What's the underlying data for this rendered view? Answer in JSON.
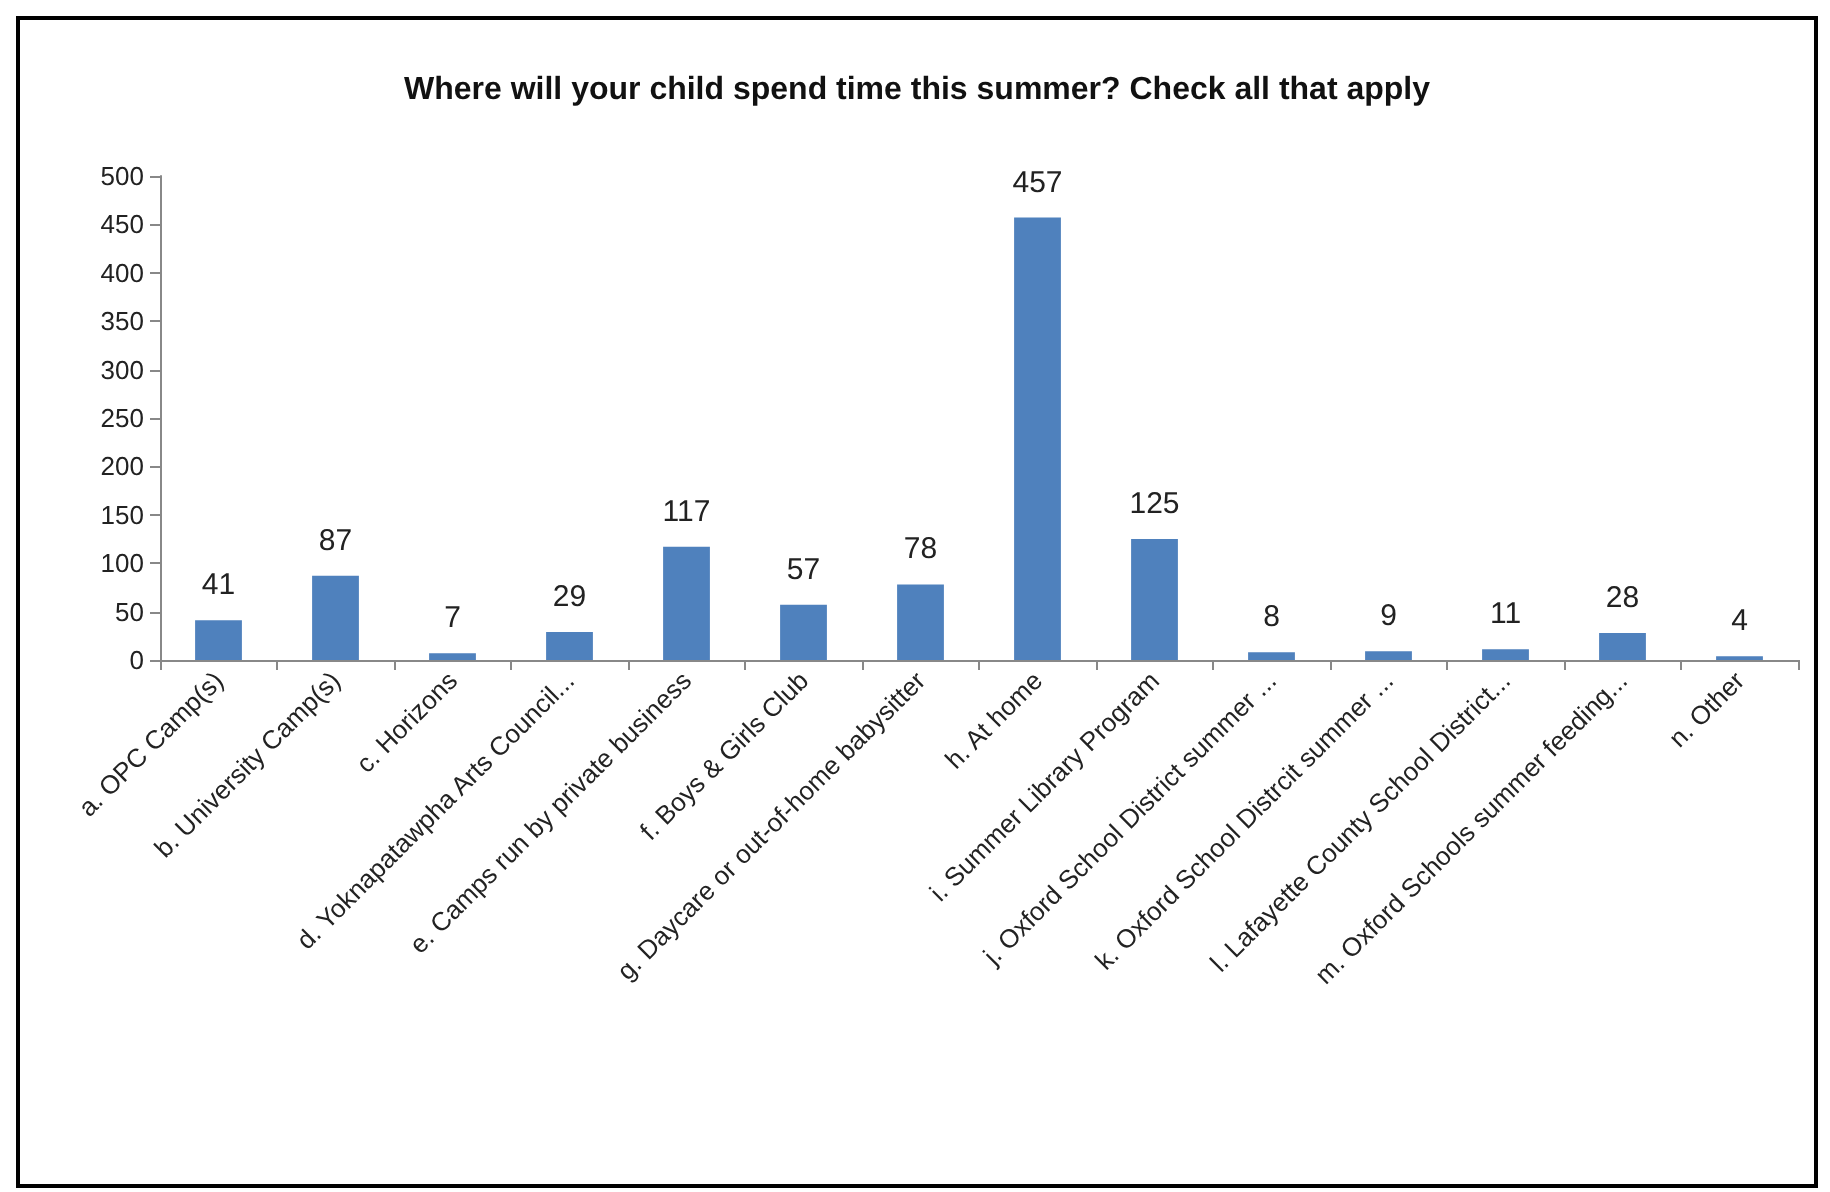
{
  "chart_data": {
    "type": "bar",
    "title": "Where will your child spend time this summer? Check all that apply",
    "categories": [
      "a. OPC Camp(s)",
      "b. University Camp(s)",
      "c. Horizons",
      "d. Yoknapatawpha Arts Council...",
      "e. Camps run by private business",
      "f. Boys & Girls Club",
      "g. Daycare or out-of-home babysitter",
      "h. At home",
      "i. Summer Library Program",
      "j. Oxford School District summer ...",
      "k. Oxford School Distrcit summer ...",
      "l. Lafayette County School District...",
      "m. Oxford Schools summer feeding...",
      "n. Other"
    ],
    "values": [
      41,
      87,
      7,
      29,
      117,
      57,
      78,
      457,
      125,
      8,
      9,
      11,
      28,
      4
    ],
    "color": "#4f81bd",
    "data_labels": true,
    "grid": false,
    "ylim": [
      0,
      500
    ],
    "yticks": [
      0,
      50,
      100,
      150,
      200,
      250,
      300,
      350,
      400,
      450,
      500
    ]
  }
}
